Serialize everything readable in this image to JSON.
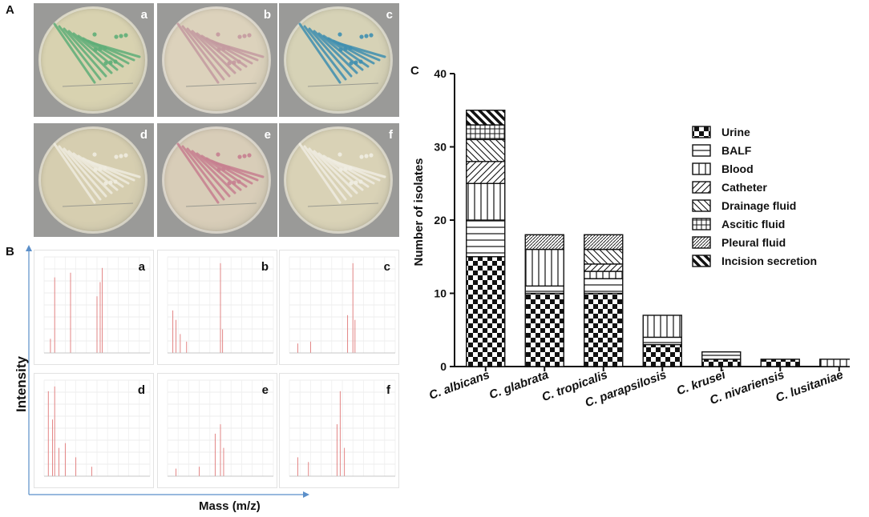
{
  "panels": {
    "A": {
      "letter": "A",
      "plates": [
        {
          "label": "a",
          "colony_color": "#5fae78",
          "agar_color": "#d8d2b0"
        },
        {
          "label": "b",
          "colony_color": "#c49aa0",
          "agar_color": "#dcd2bc"
        },
        {
          "label": "c",
          "colony_color": "#3f8fb0",
          "agar_color": "#d6d2b6"
        },
        {
          "label": "d",
          "colony_color": "#efece0",
          "agar_color": "#d6ceb0"
        },
        {
          "label": "e",
          "colony_color": "#c77f90",
          "agar_color": "#d8cdb8"
        },
        {
          "label": "f",
          "colony_color": "#f0ede2",
          "agar_color": "#d9d2b6"
        }
      ]
    },
    "B": {
      "letter": "B",
      "ylabel": "Intensity",
      "xlabel": "Mass (m/z)",
      "spectra": [
        {
          "label": "a"
        },
        {
          "label": "b"
        },
        {
          "label": "c"
        },
        {
          "label": "d"
        },
        {
          "label": "e"
        },
        {
          "label": "f"
        }
      ]
    },
    "C": {
      "letter": "C"
    }
  },
  "chart_data": {
    "type": "bar",
    "stacked": true,
    "ylabel": "Number of isolates",
    "ylim": [
      0,
      40
    ],
    "yticks": [
      "0",
      "10",
      "20",
      "30",
      "40"
    ],
    "categories": [
      "C. albicans",
      "C. glabrata",
      "C. tropicalis",
      "C. parapsilosis",
      "C. krusei",
      "C. nivariensis",
      "C. lusitaniae"
    ],
    "legend_position": "top-right",
    "series": [
      {
        "name": "Urine",
        "pattern": "checker",
        "values": [
          15,
          10,
          10,
          3,
          1,
          1,
          0
        ]
      },
      {
        "name": "BALF",
        "pattern": "hlines",
        "values": [
          5,
          1,
          2,
          1,
          1,
          0,
          0
        ]
      },
      {
        "name": "Blood",
        "pattern": "vlines",
        "values": [
          5,
          5,
          1,
          3,
          0,
          0,
          1
        ]
      },
      {
        "name": "Catheter",
        "pattern": "diag-up",
        "values": [
          3,
          0,
          1,
          0,
          0,
          0,
          0
        ]
      },
      {
        "name": "Drainage fluid",
        "pattern": "diag-down",
        "values": [
          3,
          0,
          2,
          0,
          0,
          0,
          0
        ]
      },
      {
        "name": "Ascitic fluid",
        "pattern": "grid",
        "values": [
          2,
          0,
          0,
          0,
          0,
          0,
          0
        ]
      },
      {
        "name": "Pleural fluid",
        "pattern": "diag-fine",
        "values": [
          0,
          2,
          2,
          0,
          0,
          0,
          0
        ]
      },
      {
        "name": "Incision secretion",
        "pattern": "diag-bold",
        "values": [
          2,
          0,
          0,
          0,
          0,
          0,
          0
        ]
      }
    ]
  }
}
